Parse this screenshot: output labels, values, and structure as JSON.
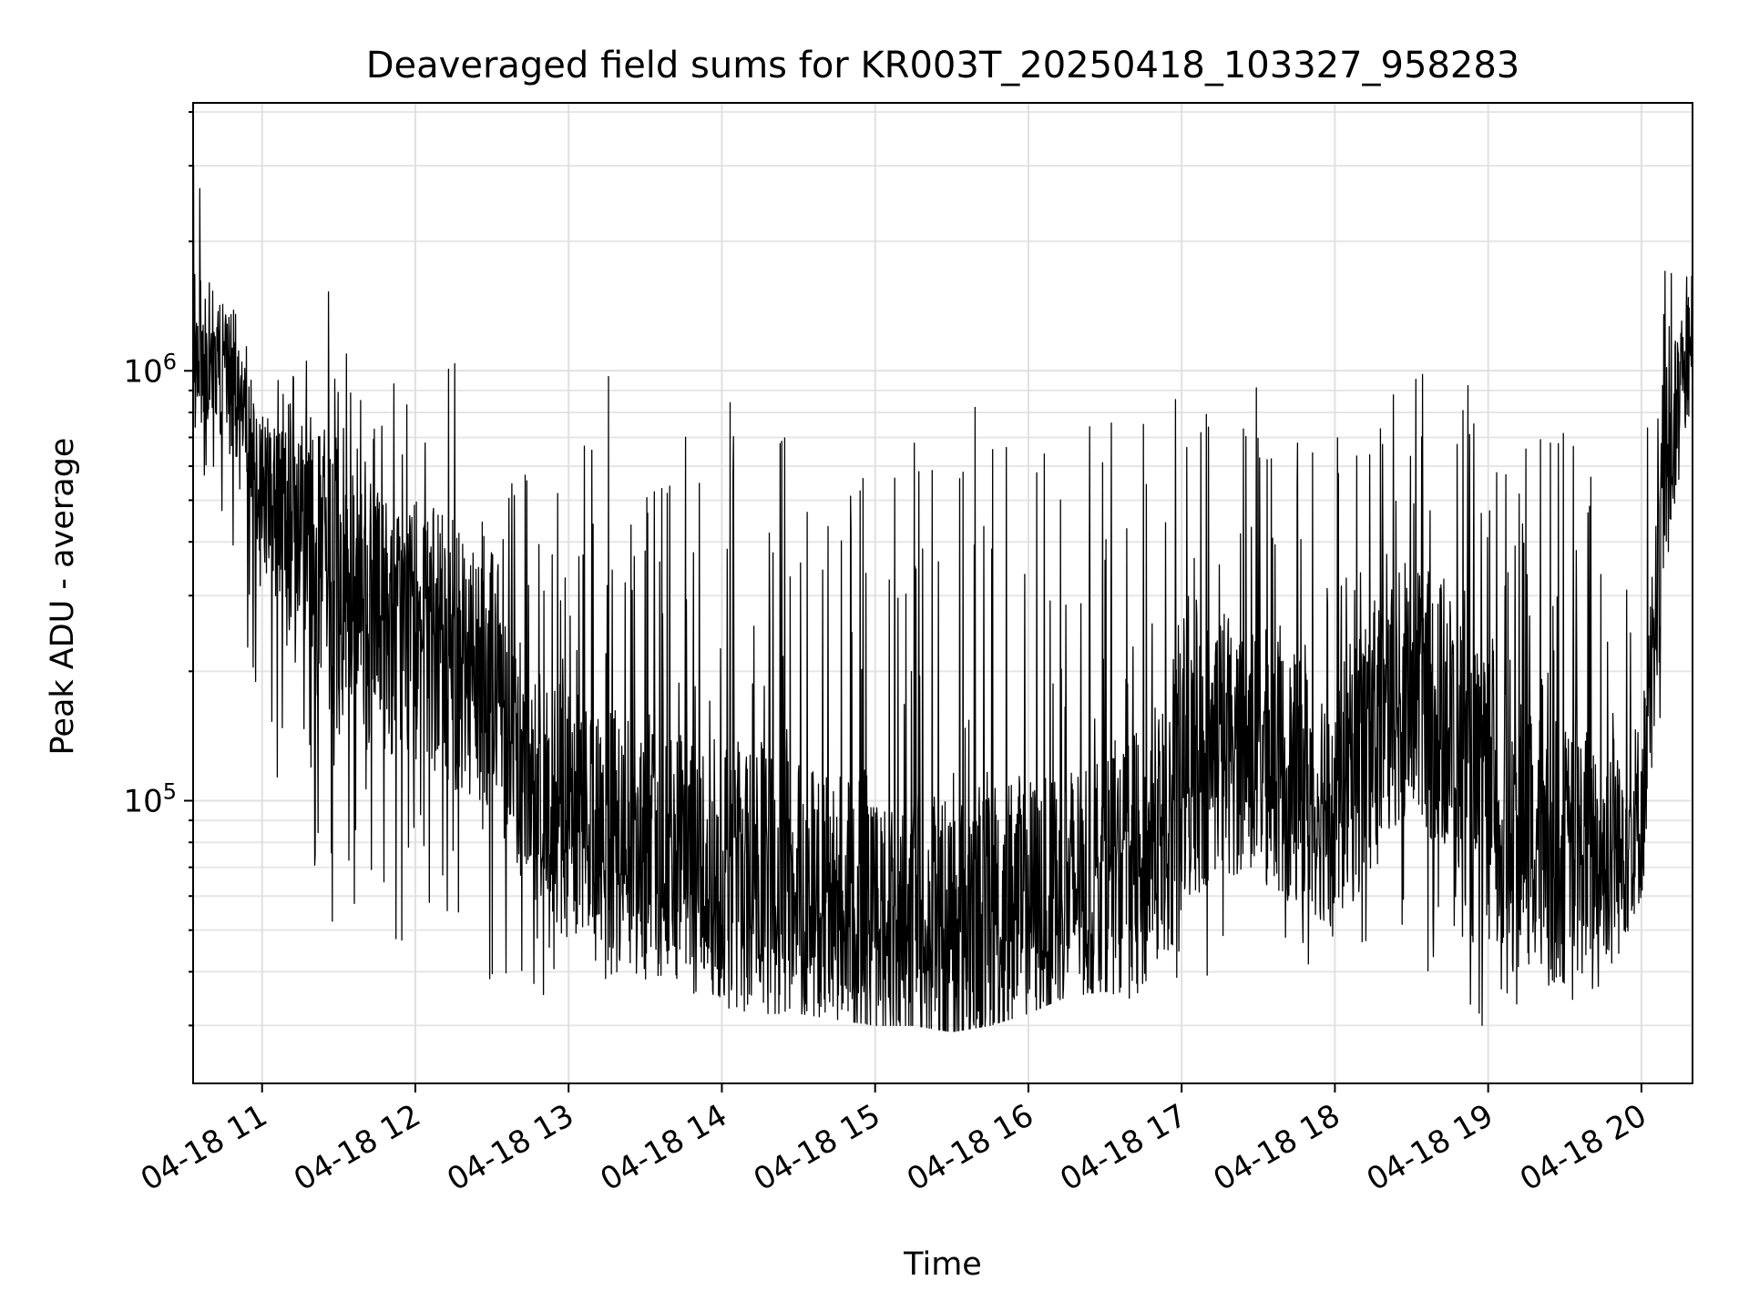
{
  "chart_data": {
    "type": "line",
    "title": "Deaveraged field sums for KR003T_20250418_103327_958283",
    "xlabel": "Time",
    "ylabel": "Peak ADU - average",
    "yscale": "log",
    "ylim": [
      22000,
      4200000
    ],
    "xlim": [
      "2025-04-18 10:33",
      "2025-04-18 20:20"
    ],
    "grid": true,
    "x_tick_labels": [
      "04-18 11",
      "04-18 12",
      "04-18 13",
      "04-18 14",
      "04-18 15",
      "04-18 16",
      "04-18 17",
      "04-18 18",
      "04-18 19",
      "04-18 20"
    ],
    "y_tick_labels": [
      {
        "value": 100000,
        "base": "10",
        "exp": "5"
      },
      {
        "value": 1000000,
        "base": "10",
        "exp": "6"
      }
    ],
    "line_color": "#000000",
    "series": [
      {
        "x": [
          "2025-04-18 10:33",
          "2025-04-18 10:45",
          "2025-04-18 11:00",
          "2025-04-18 11:15",
          "2025-04-18 11:30",
          "2025-04-18 11:45",
          "2025-04-18 12:00",
          "2025-04-18 12:15",
          "2025-04-18 12:30",
          "2025-04-18 12:45",
          "2025-04-18 13:00",
          "2025-04-18 13:15",
          "2025-04-18 13:30",
          "2025-04-18 13:45",
          "2025-04-18 14:00",
          "2025-04-18 14:15",
          "2025-04-18 14:30",
          "2025-04-18 14:45",
          "2025-04-18 15:00",
          "2025-04-18 15:15",
          "2025-04-18 15:30",
          "2025-04-18 15:45",
          "2025-04-18 16:00",
          "2025-04-18 16:15",
          "2025-04-18 16:30",
          "2025-04-18 16:45",
          "2025-04-18 17:00",
          "2025-04-18 17:15",
          "2025-04-18 17:30",
          "2025-04-18 17:45",
          "2025-04-18 18:00",
          "2025-04-18 18:15",
          "2025-04-18 18:30",
          "2025-04-18 18:45",
          "2025-04-18 19:00",
          "2025-04-18 19:15",
          "2025-04-18 19:30",
          "2025-04-18 19:45",
          "2025-04-18 20:00",
          "2025-04-18 20:10",
          "2025-04-18 20:20"
        ],
        "y": [
          1200000,
          1000000,
          550000,
          400000,
          300000,
          260000,
          250000,
          220000,
          200000,
          110000,
          90000,
          80000,
          75000,
          72000,
          70000,
          65000,
          60000,
          57000,
          52000,
          50000,
          50000,
          55000,
          58000,
          62000,
          68000,
          70000,
          110000,
          140000,
          130000,
          110000,
          100000,
          140000,
          180000,
          150000,
          90000,
          80000,
          75000,
          78000,
          90000,
          600000,
          1200000
        ],
        "low": [
          600000,
          400000,
          150000,
          60000,
          50000,
          45000,
          45000,
          42000,
          38000,
          34000,
          34000,
          35000,
          35000,
          34000,
          33000,
          32000,
          32000,
          31000,
          30000,
          30000,
          29000,
          30000,
          32000,
          35000,
          36000,
          34000,
          36000,
          40000,
          42000,
          40000,
          36000,
          36000,
          40000,
          38000,
          28000,
          30000,
          32000,
          35000,
          60000,
          200000,
          600000
        ],
        "high": [
          3500000,
          2000000,
          1000000,
          1000000,
          1800000,
          1000000,
          1000000,
          1200000,
          900000,
          700000,
          700000,
          1000000,
          700000,
          700000,
          900000,
          900000,
          800000,
          700000,
          600000,
          800000,
          900000,
          900000,
          650000,
          700000,
          800000,
          850000,
          950000,
          1000000,
          950000,
          800000,
          800000,
          1000000,
          1000000,
          1000000,
          950000,
          700000,
          750000,
          600000,
          700000,
          2300000,
          2800000
        ]
      }
    ]
  }
}
